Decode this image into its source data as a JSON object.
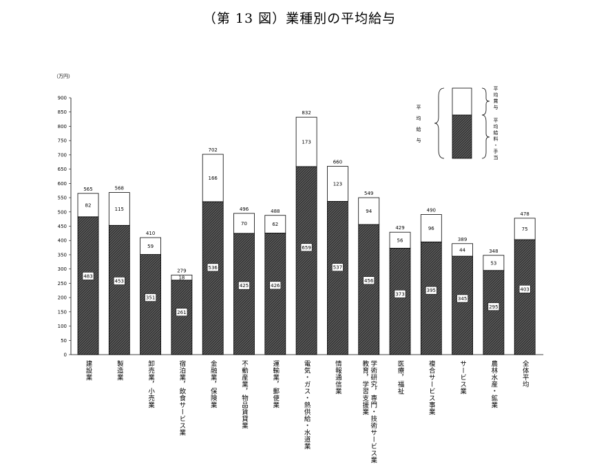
{
  "title": "（第 13 図）業種別の平均給与",
  "chart_data": {
    "type": "bar",
    "stacked": true,
    "unit_label": "（万円）",
    "ylim": [
      0,
      900
    ],
    "ytick_step": 50,
    "grid": false,
    "legend_position": "top-right",
    "categories": [
      "建設業",
      "製造業",
      "卸売業，小売業",
      "宿泊業，飲食サービス業",
      "金融業，保険業",
      "不動産業，物品賃貸業",
      "運輸業，郵便業",
      "電気・ガス・熱供給・水道業",
      "情報通信業",
      "学術研究，専門・技術サービス業，教育，学習支援業",
      "医療，福祉",
      "複合サービス事業",
      "サービス業",
      "農林水産・鉱業",
      "全体平均"
    ],
    "category_lines": [
      [
        "建設業"
      ],
      [
        "製造業"
      ],
      [
        "卸売業，小売業"
      ],
      [
        "宿泊業，飲食サービス業"
      ],
      [
        "金融業，保険業"
      ],
      [
        "不動産業，物品賃貸業"
      ],
      [
        "運輸業，郵便業"
      ],
      [
        "電気・ガス・熱供給・水道業"
      ],
      [
        "情報通信業"
      ],
      [
        "学術研究，専門・技術サービス業",
        "教育，学習支援業"
      ],
      [
        "医療，福祉"
      ],
      [
        "複合サービス事業"
      ],
      [
        "サービス業"
      ],
      [
        "農林水産・鉱業"
      ],
      [
        "全体平均"
      ]
    ],
    "series": [
      {
        "name": "平均給料・手当",
        "values": [
          483,
          453,
          351,
          261,
          536,
          425,
          426,
          659,
          537,
          456,
          373,
          395,
          345,
          295,
          403
        ],
        "fill": "hatched"
      },
      {
        "name": "平均賞与",
        "values": [
          82,
          115,
          59,
          18,
          166,
          70,
          62,
          173,
          123,
          94,
          56,
          96,
          44,
          53,
          75
        ],
        "fill": "white"
      }
    ],
    "totals": [
      565,
      568,
      410,
      279,
      702,
      496,
      488,
      832,
      660,
      549,
      429,
      490,
      389,
      348,
      478
    ],
    "legend": {
      "total_label": "平均給与",
      "bonus_label": "平均賞与",
      "salary_label": "平均給料・手当"
    }
  }
}
